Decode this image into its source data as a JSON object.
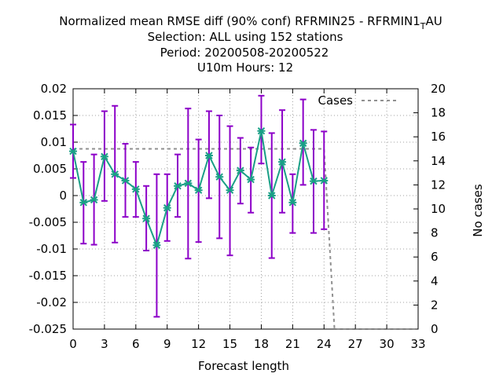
{
  "chart_data": {
    "type": "line",
    "title_lines": [
      "Normalized mean RMSE diff (90% conf) RFRMIN25 - RFRMIN1",
      "Selection: ALL using   152 stations",
      "Period: 20200508-20200522",
      "U10m   Hours:  12"
    ],
    "title_suffix_sub": "T",
    "title_suffix_tail": "AU",
    "xlabel": "Forecast length",
    "ylabel_right": "No cases",
    "x_ticks": [
      0,
      3,
      6,
      9,
      12,
      15,
      18,
      21,
      24,
      27,
      30,
      33
    ],
    "y_ticks": [
      0.02,
      0.015,
      0.01,
      0.005,
      0,
      -0.005,
      -0.01,
      -0.015,
      -0.02,
      -0.025
    ],
    "y_tick_labels": [
      "0.02",
      "0.015",
      "0.01",
      "0.005",
      "0",
      "-0.005",
      "-0.01",
      "-0.015",
      "-0.02",
      "-0.025"
    ],
    "y2_ticks": [
      0,
      2,
      4,
      6,
      8,
      10,
      12,
      14,
      16,
      18,
      20
    ],
    "xlim": [
      0,
      33
    ],
    "ylim": [
      -0.025,
      0.02
    ],
    "y2lim": [
      0,
      20
    ],
    "grid": true,
    "legend": {
      "position": "top-right",
      "label": "Cases"
    },
    "series": [
      {
        "color": "#1a9f86",
        "error_color": "#8c00c8",
        "x": [
          0,
          1,
          2,
          3,
          4,
          5,
          6,
          7,
          8,
          9,
          10,
          11,
          12,
          13,
          14,
          15,
          16,
          17,
          18,
          19,
          20,
          21,
          22,
          23,
          24
        ],
        "y": [
          0.0083,
          -0.0013,
          -0.0008,
          0.0073,
          0.004,
          0.0028,
          0.0012,
          -0.0043,
          -0.0093,
          -0.0023,
          0.0018,
          0.0023,
          0.001,
          0.0075,
          0.0035,
          0.001,
          0.0047,
          0.003,
          0.0121,
          0.0,
          0.0063,
          -0.0013,
          0.0098,
          0.0027,
          0.0028
        ],
        "lo": [
          0.0033,
          -0.009,
          -0.0092,
          -0.001,
          -0.0088,
          -0.004,
          -0.004,
          -0.0103,
          -0.0227,
          -0.0085,
          -0.004,
          -0.0118,
          -0.0087,
          -0.0005,
          -0.008,
          -0.0112,
          -0.0015,
          -0.0032,
          0.006,
          -0.0117,
          -0.0032,
          -0.007,
          0.002,
          -0.007,
          -0.0063
        ],
        "hi": [
          0.0133,
          0.0063,
          0.0077,
          0.0158,
          0.0168,
          0.0097,
          0.0063,
          0.0018,
          0.004,
          0.004,
          0.0077,
          0.0163,
          0.0105,
          0.0158,
          0.015,
          0.013,
          0.0108,
          0.009,
          0.0187,
          0.0117,
          0.016,
          0.004,
          0.018,
          0.0123,
          0.012
        ]
      },
      {
        "name": "Cases",
        "axis": "right",
        "color": "#909090",
        "x": [
          0,
          24,
          25,
          33
        ],
        "y": [
          15,
          15,
          0,
          0
        ]
      }
    ]
  }
}
